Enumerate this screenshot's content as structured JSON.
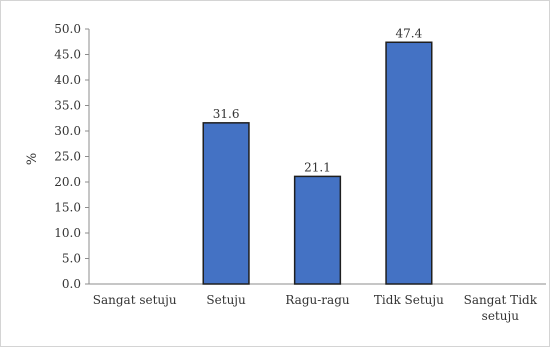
{
  "chart_data": {
    "type": "bar",
    "categories": [
      [
        "Sangat setuju"
      ],
      [
        "Setuju"
      ],
      [
        "Ragu-ragu"
      ],
      [
        "Tidk Setuju"
      ],
      [
        "Sangat Tidk",
        "setuju"
      ]
    ],
    "values": [
      null,
      31.6,
      21.1,
      47.4,
      null
    ],
    "data_labels": [
      "",
      "31.6",
      "21.1",
      "47.4",
      ""
    ],
    "ylabel": "%",
    "ylim": [
      0,
      50
    ],
    "yticks": [
      "0.0",
      "5.0",
      "10.0",
      "15.0",
      "20.0",
      "25.0",
      "30.0",
      "35.0",
      "40.0",
      "45.0",
      "50.0"
    ],
    "grid": false,
    "legend": "none",
    "bar_color": "#4472c4",
    "bar_edge_color": "#1f1f1f"
  }
}
